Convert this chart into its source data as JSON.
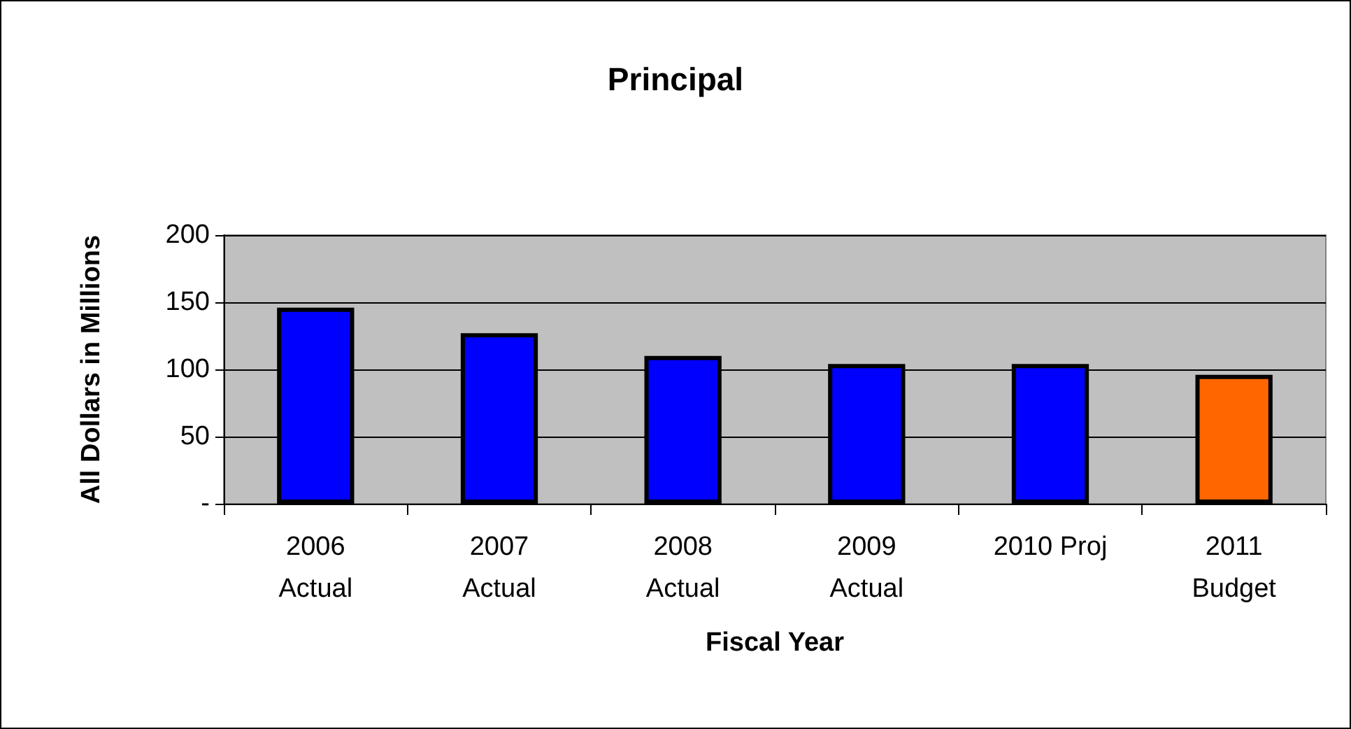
{
  "chart_data": {
    "type": "bar",
    "title": "Principal",
    "xlabel": "Fiscal Year",
    "ylabel": "All Dollars in Millions",
    "categories": [
      "2006\nActual",
      "2007\nActual",
      "2008\nActual",
      "2009\nActual",
      "2010 Proj",
      "2011\nBudget"
    ],
    "values": [
      146,
      127,
      110,
      104,
      104,
      96
    ],
    "colors": [
      "#0000ff",
      "#0000ff",
      "#0000ff",
      "#0000ff",
      "#0000ff",
      "#ff6600"
    ],
    "ylim": [
      0,
      200
    ],
    "yticks": [
      {
        "value": 0,
        "label": "-"
      },
      50,
      100,
      150,
      200
    ],
    "grid": "y"
  }
}
